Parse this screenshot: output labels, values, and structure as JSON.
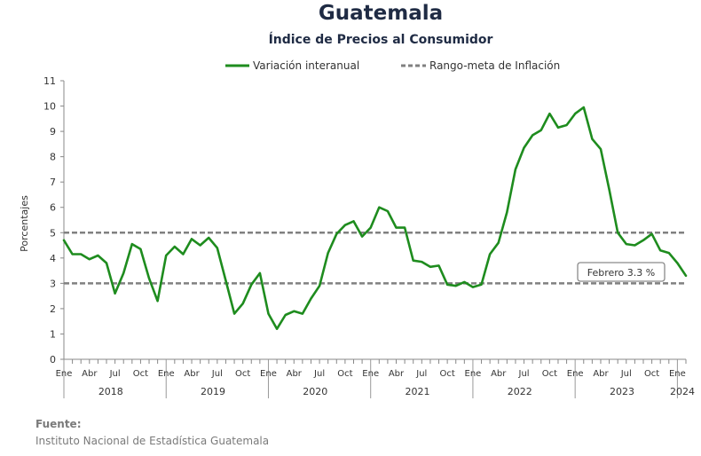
{
  "title": "Guatemala",
  "subtitle": "Índice de Precios al Consumidor",
  "source": {
    "label": "Fuente:",
    "text": "Instituto Nacional de Estadística Guatemala"
  },
  "chart_data": {
    "type": "line",
    "ylabel": "Porcentajes",
    "ylim": [
      0,
      11
    ],
    "yticks": [
      0,
      1,
      2,
      3,
      4,
      5,
      6,
      7,
      8,
      9,
      10,
      11
    ],
    "grid": false,
    "legend_position": "top",
    "month_labels": [
      "Ene",
      "Abr",
      "Jul",
      "Oct",
      "Ene",
      "Abr",
      "Jul",
      "Oct",
      "Ene",
      "Abr",
      "Jul",
      "Oct",
      "Ene",
      "Abr",
      "Jul",
      "Oct",
      "Ene",
      "Abr",
      "Jul",
      "Oct",
      "Ene",
      "Abr",
      "Jul",
      "Oct",
      "Ene"
    ],
    "years": [
      "2018",
      "2019",
      "2020",
      "2021",
      "2022",
      "2023",
      "2024"
    ],
    "x_start": "2018-01",
    "x_end": "2024-02",
    "series": [
      {
        "name": "Variación interanual",
        "color": "#1e8c1e",
        "style": "solid",
        "values": [
          4.7,
          4.15,
          4.15,
          3.95,
          4.1,
          3.8,
          2.6,
          3.4,
          4.55,
          4.35,
          3.2,
          2.3,
          4.1,
          4.45,
          4.15,
          4.75,
          4.5,
          4.8,
          4.4,
          3.1,
          1.8,
          2.2,
          2.95,
          3.4,
          1.8,
          1.2,
          1.75,
          1.9,
          1.8,
          2.4,
          2.9,
          4.2,
          4.95,
          5.3,
          5.45,
          4.85,
          5.2,
          6.0,
          5.85,
          5.2,
          5.2,
          3.9,
          3.85,
          3.65,
          3.7,
          2.95,
          2.9,
          3.05,
          2.85,
          2.95,
          4.15,
          4.6,
          5.8,
          7.5,
          8.35,
          8.85,
          9.05,
          9.7,
          9.15,
          9.25,
          9.7,
          9.95,
          8.7,
          8.3,
          6.7,
          5.0,
          4.55,
          4.5,
          4.7,
          4.95,
          4.3,
          4.2,
          3.8,
          3.3
        ]
      },
      {
        "name": "Rango-meta de Inflación",
        "color": "#808080",
        "style": "dashed",
        "bounds": [
          3,
          5
        ]
      }
    ],
    "annotation": {
      "text": "Febrero 3.3 %",
      "x": "2024-02",
      "y": 3.3
    }
  }
}
